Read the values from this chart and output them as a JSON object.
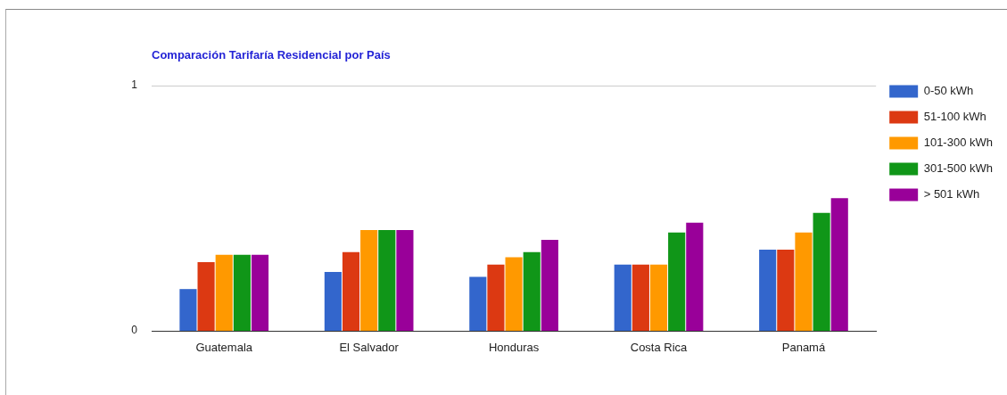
{
  "chart_data": {
    "type": "bar",
    "title": "Comparación Tarifaría Residencial por País",
    "categories": [
      "Guatemala",
      "El Salvador",
      "Honduras",
      "Costa Rica",
      "Panamá"
    ],
    "series": [
      {
        "name": "0-50 kWh",
        "color": "#3366cc",
        "values": [
          0.17,
          0.24,
          0.22,
          0.27,
          0.33
        ]
      },
      {
        "name": "51-100 kWh",
        "color": "#dc3912",
        "values": [
          0.28,
          0.32,
          0.27,
          0.27,
          0.33
        ]
      },
      {
        "name": "101-300 kWh",
        "color": "#ff9900",
        "values": [
          0.31,
          0.41,
          0.3,
          0.27,
          0.4
        ]
      },
      {
        "name": "301-500 kWh",
        "color": "#109618",
        "values": [
          0.31,
          0.41,
          0.32,
          0.4,
          0.48
        ]
      },
      {
        "name": "> 501 kWh",
        "color": "#990099",
        "values": [
          0.31,
          0.41,
          0.37,
          0.44,
          0.54
        ]
      }
    ],
    "ylim": [
      0,
      1
    ],
    "yticks": [
      0,
      1
    ],
    "legend": "right"
  }
}
